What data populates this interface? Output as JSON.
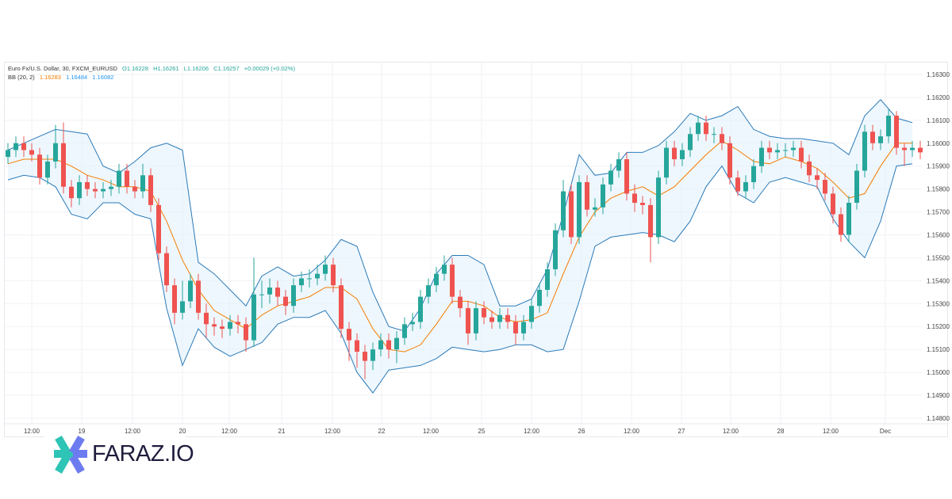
{
  "legend": {
    "symbol": "Euro Fx/U.S. Dollar, 30, FXCM_EURUSD",
    "open": "O1.16228",
    "high": "H1.16261",
    "low": "L1.16206",
    "close": "C1.16257",
    "change": "+0.00029 (+0.02%)",
    "bb_label": "BB (20, 2)",
    "bb_basis": "1.16283",
    "bb_upper": "1.16484",
    "bb_lower": "1.16082"
  },
  "logo": {
    "text": "FARAZ.IO"
  },
  "colors": {
    "up": "#26a69a",
    "down": "#ef5350",
    "basis": "#f57c00",
    "bands": "#2a7ab8",
    "band_fill": "#e3f2fd",
    "grid": "#f0f2f6"
  },
  "chart_data": {
    "type": "candlestick",
    "title": "",
    "ylim": [
      1.1475,
      1.1635
    ],
    "y_ticks": [
      "1.16300",
      "1.16200",
      "1.16100",
      "1.16000",
      "1.15900",
      "1.15800",
      "1.15700",
      "1.15600",
      "1.15500",
      "1.15400",
      "1.15300",
      "1.15200",
      "1.15100",
      "1.15000",
      "1.14900",
      "1.14800"
    ],
    "x_ticks": [
      "12:00",
      "19",
      "12:00",
      "20",
      "12:00",
      "21",
      "12:00",
      "22",
      "12:00",
      "25",
      "12:00",
      "26",
      "12:00",
      "27",
      "12:00",
      "28",
      "12:00",
      "Dec"
    ],
    "grid": true,
    "ohlc": [
      [
        1.1594,
        1.16,
        1.1591,
        1.1597
      ],
      [
        1.1597,
        1.1603,
        1.1594,
        1.16
      ],
      [
        1.16,
        1.1603,
        1.1594,
        1.1597
      ],
      [
        1.1597,
        1.16,
        1.1592,
        1.1595
      ],
      [
        1.1595,
        1.1598,
        1.1582,
        1.1585
      ],
      [
        1.1585,
        1.1595,
        1.1582,
        1.1592
      ],
      [
        1.1592,
        1.1608,
        1.1589,
        1.16
      ],
      [
        1.16,
        1.1609,
        1.1578,
        1.1581
      ],
      [
        1.1581,
        1.1584,
        1.1572,
        1.1576
      ],
      [
        1.1576,
        1.1586,
        1.1573,
        1.1583
      ],
      [
        1.1583,
        1.1586,
        1.1577,
        1.158
      ],
      [
        1.158,
        1.1583,
        1.1576,
        1.1579
      ],
      [
        1.1579,
        1.1583,
        1.1576,
        1.158
      ],
      [
        1.158,
        1.1584,
        1.1577,
        1.1581
      ],
      [
        1.1581,
        1.1591,
        1.1578,
        1.1588
      ],
      [
        1.1588,
        1.1591,
        1.1578,
        1.1581
      ],
      [
        1.1581,
        1.1584,
        1.1576,
        1.1579
      ],
      [
        1.1579,
        1.1591,
        1.1576,
        1.1586
      ],
      [
        1.1586,
        1.1589,
        1.157,
        1.1573
      ],
      [
        1.1573,
        1.1576,
        1.1549,
        1.1552
      ],
      [
        1.1552,
        1.1555,
        1.1535,
        1.1538
      ],
      [
        1.1538,
        1.1541,
        1.1521,
        1.1526
      ],
      [
        1.1526,
        1.154,
        1.1523,
        1.1531
      ],
      [
        1.1531,
        1.1543,
        1.1528,
        1.154
      ],
      [
        1.154,
        1.1543,
        1.1523,
        1.1526
      ],
      [
        1.1526,
        1.153,
        1.1515,
        1.1521
      ],
      [
        1.1521,
        1.1524,
        1.1516,
        1.152
      ],
      [
        1.152,
        1.1523,
        1.1515,
        1.1519
      ],
      [
        1.1519,
        1.1525,
        1.1516,
        1.1522
      ],
      [
        1.1522,
        1.1525,
        1.1517,
        1.1521
      ],
      [
        1.1521,
        1.1524,
        1.1509,
        1.1514
      ],
      [
        1.1514,
        1.155,
        1.1511,
        1.1534
      ],
      [
        1.1534,
        1.154,
        1.1528,
        1.1534
      ],
      [
        1.1534,
        1.1541,
        1.153,
        1.1537
      ],
      [
        1.1537,
        1.154,
        1.1529,
        1.1533
      ],
      [
        1.1533,
        1.1536,
        1.1525,
        1.1529
      ],
      [
        1.1529,
        1.1541,
        1.1526,
        1.1538
      ],
      [
        1.1538,
        1.1544,
        1.1535,
        1.1541
      ],
      [
        1.1541,
        1.1545,
        1.1537,
        1.1541
      ],
      [
        1.1541,
        1.1547,
        1.1538,
        1.1543
      ],
      [
        1.1543,
        1.1551,
        1.154,
        1.1547
      ],
      [
        1.1547,
        1.155,
        1.1535,
        1.1538
      ],
      [
        1.1538,
        1.1541,
        1.1515,
        1.1519
      ],
      [
        1.1519,
        1.1522,
        1.1505,
        1.1514
      ],
      [
        1.1514,
        1.1517,
        1.1502,
        1.1509
      ],
      [
        1.1509,
        1.1512,
        1.1497,
        1.1505
      ],
      [
        1.1505,
        1.1513,
        1.1501,
        1.151
      ],
      [
        1.151,
        1.1517,
        1.1507,
        1.1514
      ],
      [
        1.1514,
        1.1517,
        1.1506,
        1.151
      ],
      [
        1.151,
        1.1518,
        1.1504,
        1.1515
      ],
      [
        1.1515,
        1.1524,
        1.1512,
        1.1521
      ],
      [
        1.1521,
        1.1526,
        1.1518,
        1.1522
      ],
      [
        1.1522,
        1.1536,
        1.1519,
        1.1533
      ],
      [
        1.1533,
        1.1541,
        1.153,
        1.1538
      ],
      [
        1.1538,
        1.1546,
        1.1535,
        1.1543
      ],
      [
        1.1543,
        1.1551,
        1.154,
        1.1547
      ],
      [
        1.1547,
        1.155,
        1.153,
        1.1533
      ],
      [
        1.1533,
        1.1536,
        1.1524,
        1.1528
      ],
      [
        1.1528,
        1.1531,
        1.1512,
        1.1517
      ],
      [
        1.1517,
        1.1531,
        1.1514,
        1.1528
      ],
      [
        1.1528,
        1.1531,
        1.1521,
        1.1524
      ],
      [
        1.1524,
        1.1527,
        1.1519,
        1.1522
      ],
      [
        1.1522,
        1.1528,
        1.1519,
        1.1525
      ],
      [
        1.1525,
        1.1528,
        1.1519,
        1.1522
      ],
      [
        1.1522,
        1.1525,
        1.1512,
        1.1517
      ],
      [
        1.1517,
        1.1525,
        1.1514,
        1.1522
      ],
      [
        1.1522,
        1.1532,
        1.1519,
        1.1529
      ],
      [
        1.1529,
        1.1539,
        1.1526,
        1.1536
      ],
      [
        1.1536,
        1.1548,
        1.1533,
        1.1545
      ],
      [
        1.1545,
        1.1565,
        1.1542,
        1.1562
      ],
      [
        1.1562,
        1.1584,
        1.1559,
        1.1579
      ],
      [
        1.1579,
        1.1582,
        1.1556,
        1.1559
      ],
      [
        1.1559,
        1.1586,
        1.1556,
        1.1583
      ],
      [
        1.1583,
        1.1586,
        1.1568,
        1.1571
      ],
      [
        1.1571,
        1.1576,
        1.1568,
        1.1572
      ],
      [
        1.1572,
        1.1585,
        1.1569,
        1.1582
      ],
      [
        1.1582,
        1.1591,
        1.1579,
        1.1588
      ],
      [
        1.1588,
        1.1596,
        1.1585,
        1.1593
      ],
      [
        1.1593,
        1.1596,
        1.1575,
        1.1578
      ],
      [
        1.1578,
        1.1582,
        1.157,
        1.1574
      ],
      [
        1.1574,
        1.1577,
        1.1569,
        1.1573
      ],
      [
        1.1573,
        1.1576,
        1.1548,
        1.1559
      ],
      [
        1.1559,
        1.1588,
        1.1556,
        1.1585
      ],
      [
        1.1585,
        1.1601,
        1.1582,
        1.1598
      ],
      [
        1.1598,
        1.1601,
        1.159,
        1.1593
      ],
      [
        1.1593,
        1.16,
        1.159,
        1.1597
      ],
      [
        1.1597,
        1.1607,
        1.1594,
        1.1604
      ],
      [
        1.1604,
        1.1612,
        1.1601,
        1.1609
      ],
      [
        1.1609,
        1.1612,
        1.1601,
        1.1604
      ],
      [
        1.1604,
        1.1607,
        1.16,
        1.1604
      ],
      [
        1.1604,
        1.1607,
        1.1597,
        1.16
      ],
      [
        1.16,
        1.1603,
        1.1582,
        1.1585
      ],
      [
        1.1585,
        1.1588,
        1.1577,
        1.1579
      ],
      [
        1.1579,
        1.1586,
        1.1576,
        1.1583
      ],
      [
        1.1583,
        1.1593,
        1.158,
        1.159
      ],
      [
        1.159,
        1.1601,
        1.1587,
        1.1598
      ],
      [
        1.1598,
        1.1601,
        1.1593,
        1.1596
      ],
      [
        1.1596,
        1.16,
        1.1593,
        1.1597
      ],
      [
        1.1597,
        1.16,
        1.1594,
        1.1597
      ],
      [
        1.1597,
        1.1601,
        1.1594,
        1.1598
      ],
      [
        1.1598,
        1.1601,
        1.1589,
        1.1592
      ],
      [
        1.1592,
        1.1595,
        1.1583,
        1.1586
      ],
      [
        1.1586,
        1.1589,
        1.158,
        1.1584
      ],
      [
        1.1584,
        1.1587,
        1.1575,
        1.1578
      ],
      [
        1.1578,
        1.1581,
        1.1565,
        1.1569
      ],
      [
        1.1569,
        1.1572,
        1.1557,
        1.156
      ],
      [
        1.156,
        1.1577,
        1.1557,
        1.1574
      ],
      [
        1.1574,
        1.1591,
        1.1571,
        1.1588
      ],
      [
        1.1588,
        1.1608,
        1.1585,
        1.1605
      ],
      [
        1.1605,
        1.1608,
        1.1597,
        1.16
      ],
      [
        1.16,
        1.1606,
        1.1597,
        1.1603
      ],
      [
        1.1603,
        1.1615,
        1.16,
        1.1612
      ],
      [
        1.1612,
        1.1614,
        1.1595,
        1.1598
      ],
      [
        1.1598,
        1.16,
        1.159,
        1.1597
      ],
      [
        1.1597,
        1.1601,
        1.1594,
        1.1598
      ],
      [
        1.1598,
        1.1601,
        1.1593,
        1.1596
      ]
    ],
    "bollinger": {
      "label": "BB (20, 2)",
      "upper": [
        1.1597,
        1.16,
        1.1603,
        1.1606,
        1.1605,
        1.1604,
        1.159,
        1.1587,
        1.1592,
        1.1598,
        1.16,
        1.1597,
        1.1548,
        1.1543,
        1.1536,
        1.1529,
        1.1542,
        1.1546,
        1.1542,
        1.1543,
        1.1549,
        1.1558,
        1.1555,
        1.1535,
        1.152,
        1.1518,
        1.1528,
        1.1543,
        1.1551,
        1.1551,
        1.1547,
        1.1529,
        1.1529,
        1.1532,
        1.1545,
        1.1569,
        1.1595,
        1.1586,
        1.1587,
        1.1596,
        1.1596,
        1.1599,
        1.1605,
        1.1613,
        1.161,
        1.1612,
        1.1616,
        1.1606,
        1.1603,
        1.1602,
        1.1602,
        1.1601,
        1.16,
        1.1595,
        1.1612,
        1.1619,
        1.1611,
        1.1609
      ],
      "basis": [
        1.1591,
        1.1593,
        1.1593,
        1.1593,
        1.159,
        1.1586,
        1.1584,
        1.1581,
        1.1581,
        1.1579,
        1.1566,
        1.1549,
        1.1536,
        1.1527,
        1.1523,
        1.1519,
        1.1525,
        1.1529,
        1.1531,
        1.1533,
        1.1537,
        1.1537,
        1.1532,
        1.1519,
        1.151,
        1.1509,
        1.1512,
        1.1521,
        1.1531,
        1.1531,
        1.1529,
        1.1524,
        1.1522,
        1.1523,
        1.1526,
        1.1543,
        1.1559,
        1.157,
        1.1576,
        1.1579,
        1.1581,
        1.1577,
        1.1581,
        1.1588,
        1.1595,
        1.1601,
        1.1597,
        1.1592,
        1.1591,
        1.1594,
        1.1592,
        1.1589,
        1.1583,
        1.1576,
        1.1578,
        1.159,
        1.16,
        1.16
      ],
      "lower": [
        1.1584,
        1.1586,
        1.1585,
        1.1581,
        1.1569,
        1.1567,
        1.1574,
        1.1574,
        1.1569,
        1.1567,
        1.1528,
        1.1503,
        1.1519,
        1.1511,
        1.1507,
        1.151,
        1.1513,
        1.1521,
        1.1524,
        1.1524,
        1.1527,
        1.1517,
        1.15,
        1.1491,
        1.1501,
        1.1502,
        1.1503,
        1.1506,
        1.1511,
        1.151,
        1.1509,
        1.151,
        1.1512,
        1.1512,
        1.1509,
        1.151,
        1.1531,
        1.1555,
        1.1559,
        1.156,
        1.1561,
        1.156,
        1.1557,
        1.1566,
        1.1581,
        1.159,
        1.1578,
        1.1574,
        1.1583,
        1.1585,
        1.1583,
        1.1581,
        1.1567,
        1.1557,
        1.155,
        1.1566,
        1.159,
        1.1591
      ]
    }
  }
}
